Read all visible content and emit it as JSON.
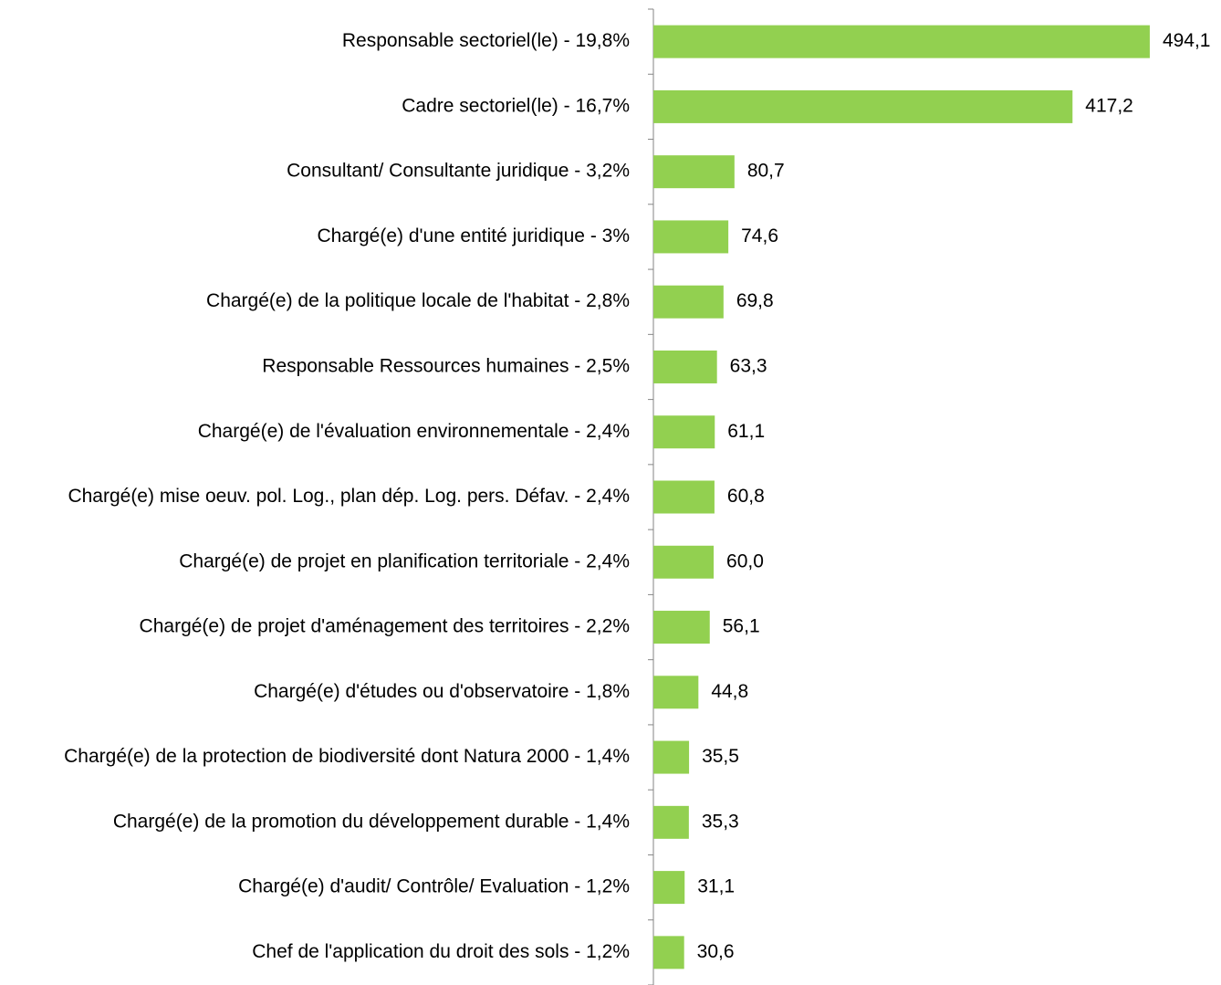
{
  "chart_data": {
    "type": "bar",
    "orientation": "horizontal",
    "categories": [
      "Responsable sectoriel(le) - 19,8%",
      "Cadre sectoriel(le) - 16,7%",
      "Consultant/ Consultante juridique - 3,2%",
      "Chargé(e) d'une entité juridique - 3%",
      "Chargé(e) de la politique locale de l'habitat - 2,8%",
      "Responsable Ressources humaines - 2,5%",
      "Chargé(e) de l'évaluation environnementale - 2,4%",
      "Chargé(e) mise oeuv. pol. Log., plan dép. Log. pers. Défav. - 2,4%",
      "Chargé(e) de projet en planification territoriale - 2,4%",
      "Chargé(e) de projet d'aménagement des territoires - 2,2%",
      "Chargé(e) d'études ou d'observatoire - 1,8%",
      "Chargé(e) de la protection de biodiversité dont Natura 2000 - 1,4%",
      "Chargé(e) de la promotion du développement durable - 1,4%",
      "Chargé(e) d'audit/ Contrôle/ Evaluation - 1,2%",
      "Chef de l'application du droit des sols - 1,2%"
    ],
    "values": [
      494.1,
      417.2,
      80.7,
      74.6,
      69.8,
      63.3,
      61.1,
      60.8,
      60.0,
      56.1,
      44.8,
      35.5,
      35.3,
      31.1,
      30.6
    ],
    "value_labels": [
      "494,1",
      "417,2",
      "80,7",
      "74,6",
      "69,8",
      "63,3",
      "61,1",
      "60,8",
      "60,0",
      "56,1",
      "44,8",
      "35,5",
      "35,3",
      "31,1",
      "30,6"
    ],
    "color": "#92d050",
    "xlim": [
      0,
      565
    ]
  }
}
